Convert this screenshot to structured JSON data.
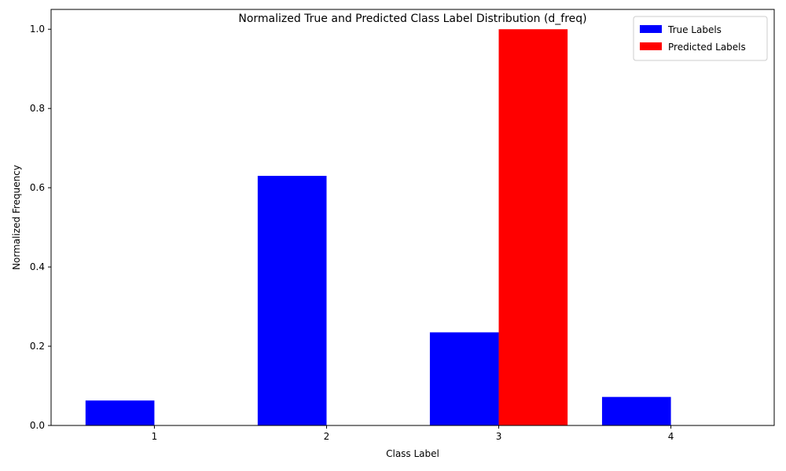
{
  "chart_data": {
    "type": "bar",
    "title": "Normalized True and Predicted Class Label Distribution (d_freq)",
    "xlabel": "Class Label",
    "ylabel": "Normalized Frequency",
    "categories": [
      "1",
      "2",
      "3",
      "4"
    ],
    "series": [
      {
        "name": "True Labels",
        "color": "#0000ff",
        "values": [
          0.063,
          0.63,
          0.235,
          0.072
        ]
      },
      {
        "name": "Predicted Labels",
        "color": "#ff0000",
        "values": [
          0.0,
          0.0,
          1.0,
          0.0
        ]
      }
    ],
    "ylim": [
      0,
      1.05
    ],
    "yticks": [
      "0.0",
      "0.2",
      "0.4",
      "0.6",
      "0.8",
      "1.0"
    ],
    "legend_position": "top-right",
    "grid": false
  }
}
